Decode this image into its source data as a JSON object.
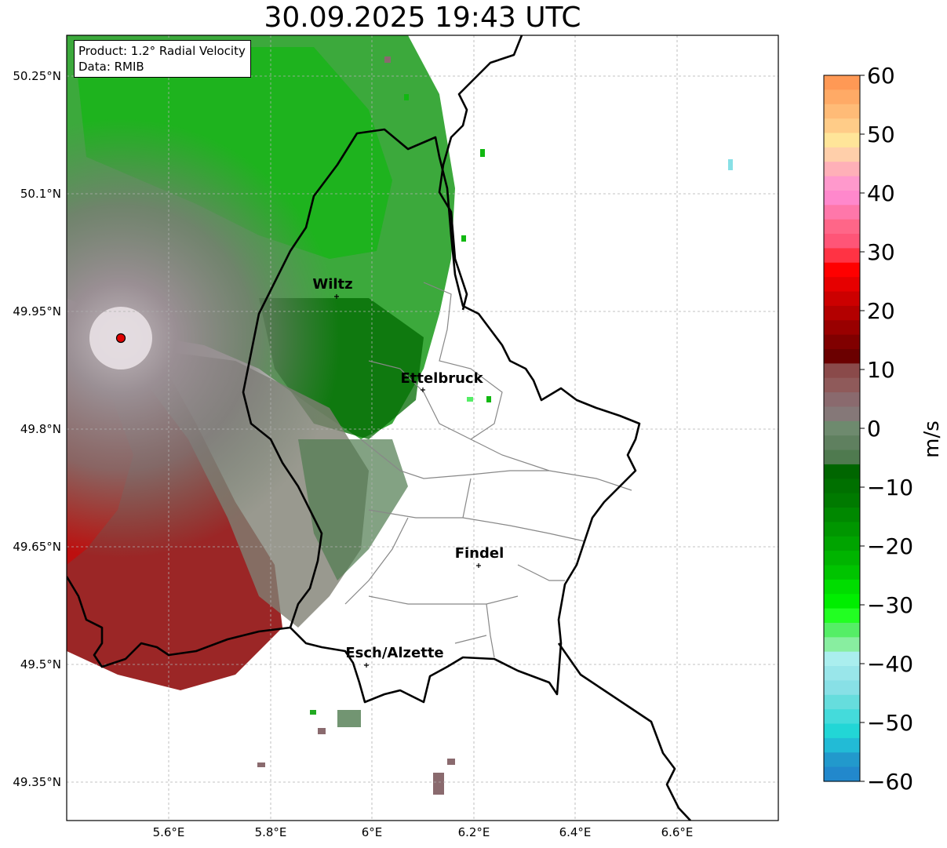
{
  "title": "30.09.2025 19:43 UTC",
  "info": {
    "product": "Product: 1.2° Radial Velocity",
    "source": "Data: RMIB"
  },
  "axes": {
    "x_ticks": [
      "5.6°E",
      "5.8°E",
      "6°E",
      "6.2°E",
      "6.4°E",
      "6.6°E"
    ],
    "y_ticks": [
      "50.25°N",
      "50.1°N",
      "49.95°N",
      "49.8°N",
      "49.65°N",
      "49.5°N",
      "49.35°N"
    ],
    "lon_range": [
      5.4,
      6.8
    ],
    "lat_range": [
      49.3,
      50.3
    ]
  },
  "cities": [
    {
      "name": "Wiltz",
      "lon": 5.93,
      "lat": 49.97
    },
    {
      "name": "Ettelbruck",
      "lon": 6.1,
      "lat": 49.85
    },
    {
      "name": "Findel",
      "lon": 6.21,
      "lat": 49.63
    },
    {
      "name": "Esch/Alzette",
      "lon": 5.99,
      "lat": 49.5
    }
  ],
  "radar_site": {
    "lon": 5.505,
    "lat": 49.914
  },
  "colorbar": {
    "label": "m/s",
    "min": -60,
    "max": 60,
    "ticks": [
      "60",
      "50",
      "40",
      "30",
      "20",
      "10",
      "0",
      "−10",
      "−20",
      "−30",
      "−40",
      "−50",
      "−60"
    ],
    "colors": [
      "#ff9955",
      "#ffaa66",
      "#ffbb77",
      "#ffcc88",
      "#ffe599",
      "#ffcfaa",
      "#ffb0b8",
      "#ff99cc",
      "#ff88cc",
      "#ff77aa",
      "#ff6688",
      "#ff5577",
      "#ff3344",
      "#ff0000",
      "#e60000",
      "#cc0000",
      "#b30000",
      "#990000",
      "#800000",
      "#6b0000",
      "#8a4a4a",
      "#8f5a5a",
      "#8a6a6e",
      "#857878",
      "#6e8a6e",
      "#5f805f",
      "#4f7a4f",
      "#006600",
      "#007000",
      "#007a00",
      "#008800",
      "#009600",
      "#00a400",
      "#00b400",
      "#00c400",
      "#00dd00",
      "#00ee00",
      "#22ff22",
      "#55ee66",
      "#88eea0",
      "#aaeeee",
      "#99e6ea",
      "#88e0e6",
      "#66dddd",
      "#44dbdb",
      "#22d6d6",
      "#22bbd6",
      "#2299cc",
      "#2288cc"
    ]
  }
}
